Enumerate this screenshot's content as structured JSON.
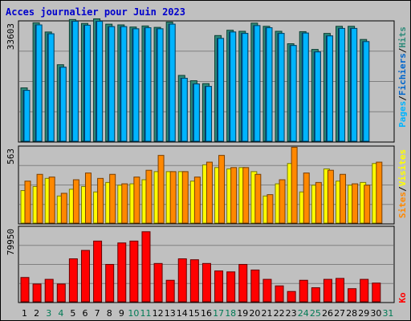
{
  "title": "Acces journalier pour Juin 2023",
  "colors": {
    "hits": "#2e8b7a",
    "pages": "#00b4ff",
    "files": "#0066cc",
    "sites": "#ff8800",
    "visits": "#ffff00",
    "kb": "#ff0000",
    "weekend": "#007a55",
    "weekday": "#000000",
    "title": "#0000cc"
  },
  "legend": {
    "top": [
      "Pages",
      "/",
      "Fichiers",
      "/",
      "Hits"
    ],
    "middle": [
      "Sites",
      "/",
      "Visites"
    ],
    "bottom": [
      "Ko"
    ]
  },
  "chart_data": {
    "type": "bar",
    "title": "Acces journalier pour Juin 2023",
    "categories": [
      "1",
      "2",
      "3",
      "4",
      "5",
      "6",
      "7",
      "8",
      "9",
      "10",
      "11",
      "12",
      "13",
      "14",
      "15",
      "16",
      "17",
      "18",
      "19",
      "20",
      "21",
      "22",
      "23",
      "24",
      "25",
      "26",
      "27",
      "28",
      "29",
      "30",
      "31"
    ],
    "weekend_days": [
      "3",
      "4",
      "10",
      "11",
      "17",
      "18",
      "24",
      "25",
      "31"
    ],
    "panels": [
      {
        "name": "hits-pages-files",
        "ymax_label": "33603",
        "ymax": 33603,
        "series": [
          {
            "name": "Hits",
            "values": [
              15000,
              33300,
              30700,
              21500,
              34200,
              33100,
              34400,
              32900,
              32700,
              32100,
              32400,
              32000,
              33500,
              18500,
              17000,
              16200,
              29700,
              31200,
              30900,
              33200,
              32300,
              30900,
              27400,
              30800,
              25800,
              30300,
              32300,
              32300,
              28600,
              0
            ]
          },
          {
            "name": "Fichiers",
            "values": [
              14300,
              32700,
              30200,
              20800,
              33700,
              32600,
              33700,
              32200,
              32200,
              31600,
              31900,
              31600,
              32900,
              17700,
              16100,
              15400,
              28900,
              30700,
              30300,
              32500,
              31900,
              30300,
              26900,
              30400,
              25100,
              29600,
              31700,
              31700,
              28000,
              0
            ]
          },
          {
            "name": "Pages",
            "values": [
              14300,
              32700,
              30200,
              20800,
              33700,
              32600,
              33700,
              32200,
              32200,
              31600,
              31900,
              31600,
              32900,
              17700,
              16100,
              15400,
              28900,
              30700,
              30300,
              32500,
              31900,
              30300,
              26900,
              30400,
              25100,
              29600,
              31700,
              31700,
              28000,
              0
            ]
          }
        ]
      },
      {
        "name": "sites-visits",
        "ymax_label": "563",
        "ymax": 563,
        "series": [
          {
            "name": "Visites",
            "values": [
              240,
              270,
              330,
              200,
              250,
              270,
              230,
              300,
              280,
              290,
              320,
              380,
              380,
              380,
              310,
              430,
              410,
              400,
              410,
              380,
              200,
              290,
              440,
              230,
              280,
              400,
              310,
              280,
              300,
              440
            ]
          },
          {
            "name": "Sites",
            "values": [
              310,
              360,
              340,
              220,
              320,
              370,
              330,
              360,
              290,
              340,
              390,
              500,
              380,
              380,
              340,
              450,
              500,
              410,
              410,
              360,
              210,
              320,
              560,
              370,
              300,
              390,
              360,
              290,
              280,
              450
            ]
          }
        ]
      },
      {
        "name": "kb",
        "ymax_label": "79950",
        "ymax": 79950,
        "series": [
          {
            "name": "Ko",
            "values": [
              26000,
              19000,
              24000,
              19000,
              46000,
              55000,
              65000,
              40000,
              63000,
              65000,
              75000,
              41000,
              23000,
              46000,
              45000,
              41000,
              33000,
              32000,
              40000,
              34000,
              24000,
              17000,
              11000,
              23000,
              15000,
              24000,
              25000,
              14000,
              24000,
              20000
            ]
          }
        ]
      }
    ]
  }
}
